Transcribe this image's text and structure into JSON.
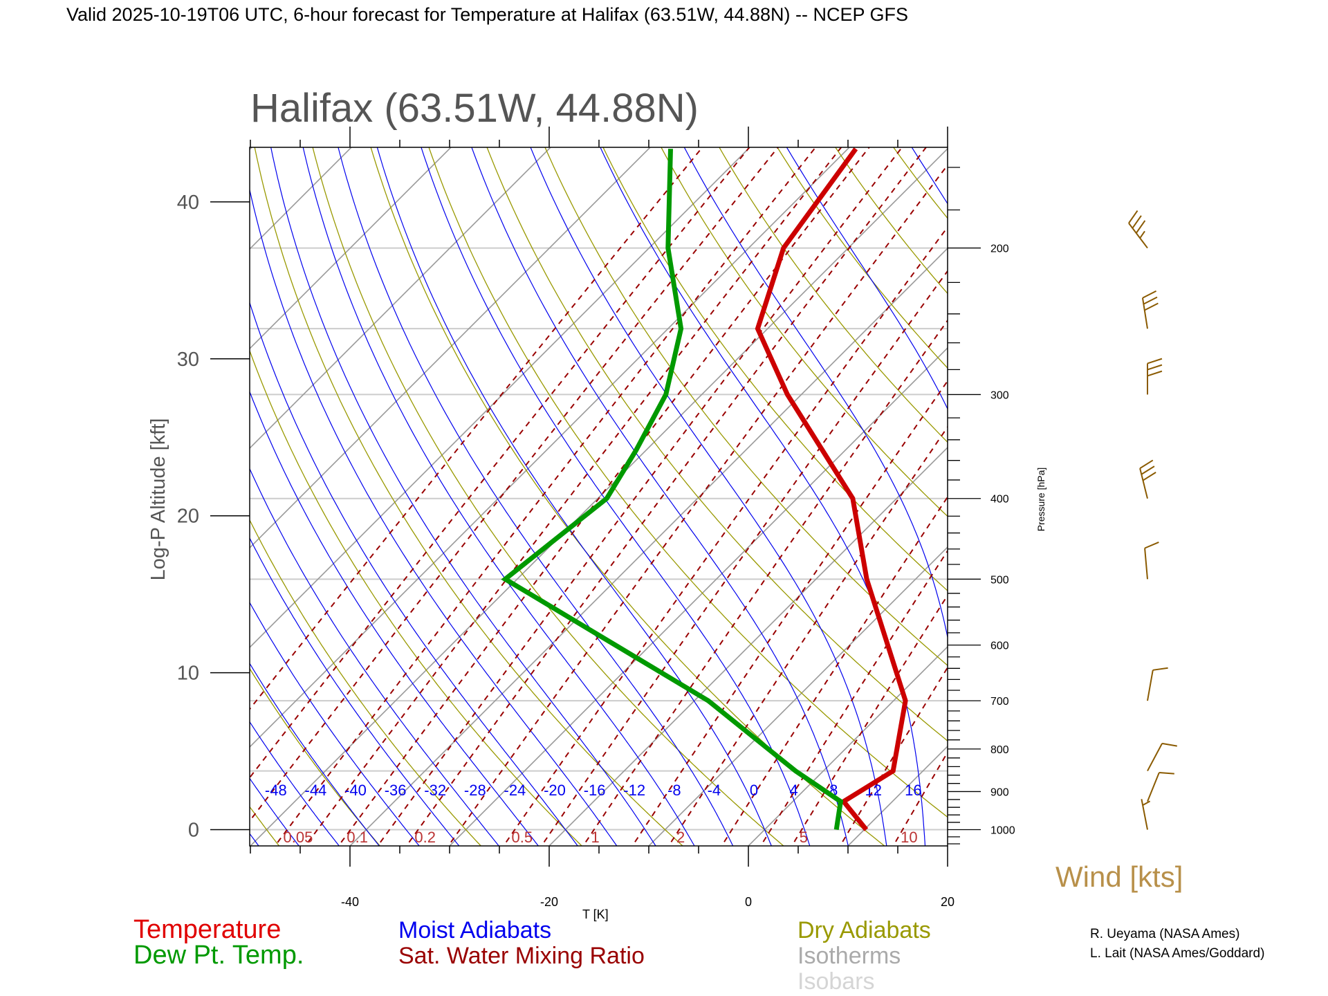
{
  "header": {
    "title": "Valid 2025-10-19T06 UTC, 6-hour forecast for Temperature at Halifax (63.51W, 44.88N) -- NCEP GFS"
  },
  "chart_data": {
    "type": "line",
    "subtype": "skew-T log-P diagram",
    "title": "Halifax (63.51W, 44.88N)",
    "xlabel": "T [K]",
    "ylabel_left": "Log-P Altitude [kft]",
    "ylabel_right": "Pressure [hPa]",
    "x_ticks": [
      "-40",
      "-20",
      "0",
      "20"
    ],
    "x_tick_values": [
      -40,
      -20,
      0,
      20
    ],
    "xlim": [
      -50,
      20
    ],
    "altitude_ticks": [
      "0",
      "10",
      "20",
      "30",
      "40"
    ],
    "altitude_tick_values": [
      0,
      10,
      20,
      30,
      40
    ],
    "pressure_ticks": [
      "1000",
      "900",
      "800",
      "700",
      "600",
      "500",
      "400",
      "300",
      "200"
    ],
    "pressure_tick_values": [
      1000,
      900,
      800,
      700,
      600,
      500,
      400,
      300,
      200
    ],
    "pressure_range_hpa": [
      1045,
      152
    ],
    "isobars_hpa": [
      1000,
      850,
      700,
      500,
      400,
      300,
      250,
      200
    ],
    "moist_adiabat_labels": [
      "-48",
      "-44",
      "-40",
      "-36",
      "-32",
      "-28",
      "-24",
      "-20",
      "-16",
      "-12",
      "-8",
      "-4",
      "0",
      "4",
      "8",
      "12",
      "16"
    ],
    "moist_adiabat_values": [
      -48,
      -44,
      -40,
      -36,
      -32,
      -28,
      -24,
      -20,
      -16,
      -12,
      -8,
      -4,
      0,
      4,
      8,
      12,
      16
    ],
    "mixing_ratio_labels": [
      "0.05",
      "0.1",
      "0.2",
      "0.5",
      "1",
      "2",
      "5",
      "10"
    ],
    "mixing_ratio_values": [
      0.05,
      0.1,
      0.2,
      0.5,
      1,
      2,
      5,
      10
    ],
    "series": [
      {
        "name": "Temperature",
        "color": "#cc0000",
        "points": [
          {
            "p": 1000,
            "t": 10.2
          },
          {
            "p": 925,
            "t": 5.1
          },
          {
            "p": 850,
            "t": 7.0
          },
          {
            "p": 700,
            "t": 1.2
          },
          {
            "p": 500,
            "t": -14.9
          },
          {
            "p": 400,
            "t": -24.4
          },
          {
            "p": 300,
            "t": -41.4
          },
          {
            "p": 250,
            "t": -51.0
          },
          {
            "p": 200,
            "t": -56.5
          },
          {
            "p": 152,
            "t": -59.2
          }
        ]
      },
      {
        "name": "Dew Pt. Temp.",
        "color": "#009900",
        "points": [
          {
            "p": 1000,
            "t": 7.2
          },
          {
            "p": 925,
            "t": 4.8
          },
          {
            "p": 850,
            "t": -2.8
          },
          {
            "p": 700,
            "t": -18.6
          },
          {
            "p": 500,
            "t": -51.2
          },
          {
            "p": 400,
            "t": -49.1
          },
          {
            "p": 350,
            "t": -51.0
          },
          {
            "p": 300,
            "t": -53.6
          },
          {
            "p": 250,
            "t": -58.7
          },
          {
            "p": 200,
            "t": -68.1
          },
          {
            "p": 152,
            "t": -77.8
          }
        ]
      }
    ],
    "wind": {
      "label": "Wind [kts]",
      "barbs": [
        {
          "p": 200,
          "dir": 323,
          "speed": 35
        },
        {
          "p": 250,
          "dir": 351,
          "speed": 30
        },
        {
          "p": 300,
          "dir": 360,
          "speed": 30
        },
        {
          "p": 400,
          "dir": 346,
          "speed": 30
        },
        {
          "p": 500,
          "dir": 355,
          "speed": 10
        },
        {
          "p": 700,
          "dir": 10,
          "speed": 10
        },
        {
          "p": 850,
          "dir": 28,
          "speed": 10
        },
        {
          "p": 925,
          "dir": 22,
          "speed": 10
        },
        {
          "p": 1000,
          "dir": 349,
          "speed": 5
        }
      ]
    },
    "legend": {
      "temperature": "Temperature",
      "dewpoint": "Dew Pt. Temp.",
      "moist": "Moist Adiabats",
      "mixing": "Sat. Water Mixing Ratio",
      "dry": "Dry Adiabats",
      "isotherms": "Isotherms",
      "isobars": "Isobars"
    },
    "grid": true
  },
  "credits": {
    "line1": "R. Ueyama (NASA Ames)",
    "line2": "L. Lait (NASA Ames/Goddard)"
  },
  "colors": {
    "temperature": "#cc0000",
    "dewpoint": "#009900",
    "moist": "#0000ee",
    "mixing": "#990000",
    "dry": "#999900",
    "isotherm": "#999999",
    "isobar": "#cccccc",
    "wind": "#8a5a00",
    "wind_label": "#b8904a"
  }
}
